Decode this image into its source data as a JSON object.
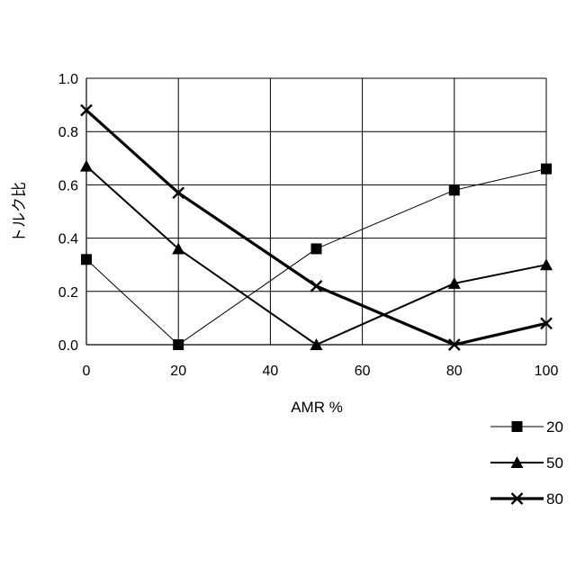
{
  "chart_data": {
    "type": "line",
    "xlabel": "AMR %",
    "ylabel": "トルク比",
    "xlim": [
      0,
      100
    ],
    "ylim": [
      0,
      1.0
    ],
    "x_ticks": [
      "0",
      "20",
      "40",
      "60",
      "80",
      "100"
    ],
    "y_ticks": [
      "0.0",
      "0.2",
      "0.4",
      "0.6",
      "0.8",
      "1.0"
    ],
    "grid": true,
    "legend_position": "bottom-right",
    "series": [
      {
        "name": "20",
        "marker": "square",
        "line_weight": "thin",
        "x": [
          0,
          20,
          50,
          80,
          100
        ],
        "y": [
          0.32,
          0.0,
          0.36,
          0.58,
          0.66
        ]
      },
      {
        "name": "50",
        "marker": "triangle",
        "line_weight": "medium",
        "x": [
          0,
          20,
          50,
          80,
          100
        ],
        "y": [
          0.67,
          0.36,
          0.0,
          0.23,
          0.3
        ]
      },
      {
        "name": "80",
        "marker": "x",
        "line_weight": "thick",
        "x": [
          0,
          20,
          50,
          80,
          100
        ],
        "y": [
          0.88,
          0.57,
          0.22,
          0.0,
          0.08
        ]
      }
    ]
  }
}
